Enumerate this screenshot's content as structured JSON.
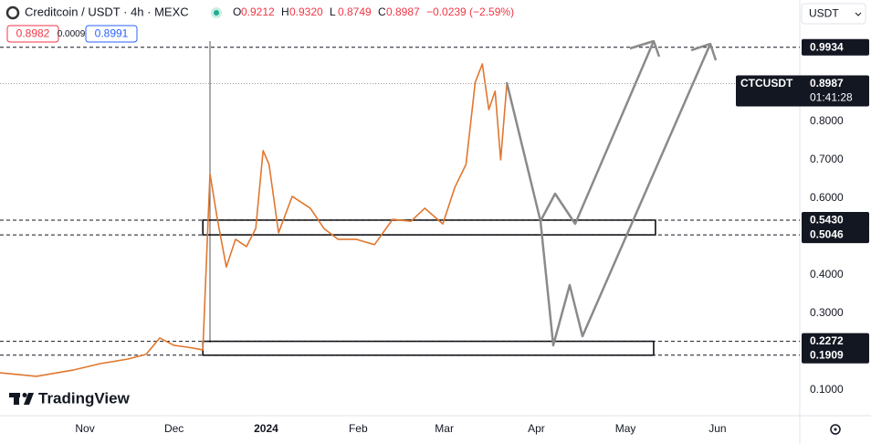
{
  "header": {
    "symbol": "Creditcoin / USDT · 4h · MEXC",
    "ohlc": [
      {
        "key": "O",
        "value": "0.9212"
      },
      {
        "key": "H",
        "value": "0.9320"
      },
      {
        "key": "L",
        "value": "0.8749"
      },
      {
        "key": "C",
        "value": "0.8987"
      }
    ],
    "change": "−0.0239 (−2.59%)",
    "bid": "0.8982",
    "spread": "0.0009",
    "ask": "0.8991",
    "currency": "USDT"
  },
  "brand": "TradingView",
  "chart_data": {
    "type": "line",
    "x": [
      -28.6,
      -16.3,
      -4,
      5.2,
      14.5,
      20.6,
      25.2,
      29.9,
      34.5,
      39.7,
      42.1,
      44.6,
      47.6,
      50.7,
      54.4,
      57.5,
      60,
      62,
      65.2,
      69.8,
      75.9,
      80.5,
      85.2,
      91.3,
      97.5,
      103.6,
      109.8,
      114.4,
      120.5,
      124.6,
      128.3,
      131.4,
      133.8,
      136,
      138.1,
      140,
      142.1
    ],
    "series": [
      {
        "name": "CTCUSDT",
        "color": "#e0772f",
        "values": [
          0.145,
          0.136,
          0.152,
          0.169,
          0.181,
          0.193,
          0.236,
          0.217,
          0.212,
          0.205,
          0.664,
          0.545,
          0.421,
          0.493,
          0.474,
          0.521,
          0.724,
          0.688,
          0.51,
          0.605,
          0.574,
          0.521,
          0.493,
          0.493,
          0.479,
          0.545,
          0.54,
          0.574,
          0.533,
          0.629,
          0.688,
          0.902,
          0.95,
          0.831,
          0.879,
          0.7,
          0.902
        ]
      }
    ],
    "xlim": [
      -28.6,
      240.7
    ],
    "xticks": [
      {
        "value": 0,
        "label": "Nov"
      },
      {
        "value": 30,
        "label": "Dec"
      },
      {
        "value": 61,
        "label": "2024"
      },
      {
        "value": 92,
        "label": "Feb"
      },
      {
        "value": 121,
        "label": "Mar"
      },
      {
        "value": 152,
        "label": "Apr"
      },
      {
        "value": 182,
        "label": "May"
      },
      {
        "value": 213,
        "label": "Jun"
      }
    ],
    "ylim": [
      0.0333,
      1.1167
    ],
    "yticks": [
      {
        "value": 0.1,
        "label": "0.1000"
      },
      {
        "value": 0.3,
        "label": "0.3000"
      },
      {
        "value": 0.4,
        "label": "0.4000"
      },
      {
        "value": 0.6,
        "label": "0.6000"
      },
      {
        "value": 0.7,
        "label": "0.7000"
      },
      {
        "value": 0.8,
        "label": "0.8000"
      }
    ],
    "levels": [
      {
        "value": 0.9934,
        "label": "0.9934"
      },
      {
        "value": 0.543,
        "label": "0.5430"
      },
      {
        "value": 0.5046,
        "label": "0.5046"
      },
      {
        "value": 0.2272,
        "label": "0.2272"
      },
      {
        "value": 0.1909,
        "label": "0.1909"
      }
    ],
    "zones": [
      {
        "range": [
          0.5046,
          0.543
        ],
        "x": [
          39.7,
          192.1
        ]
      },
      {
        "range": [
          0.1909,
          0.2272
        ],
        "x": [
          39.7,
          191.5
        ]
      }
    ],
    "last_price": {
      "value": 0.8987,
      "label": "0.8987"
    },
    "countdown": "01:41:28"
  }
}
